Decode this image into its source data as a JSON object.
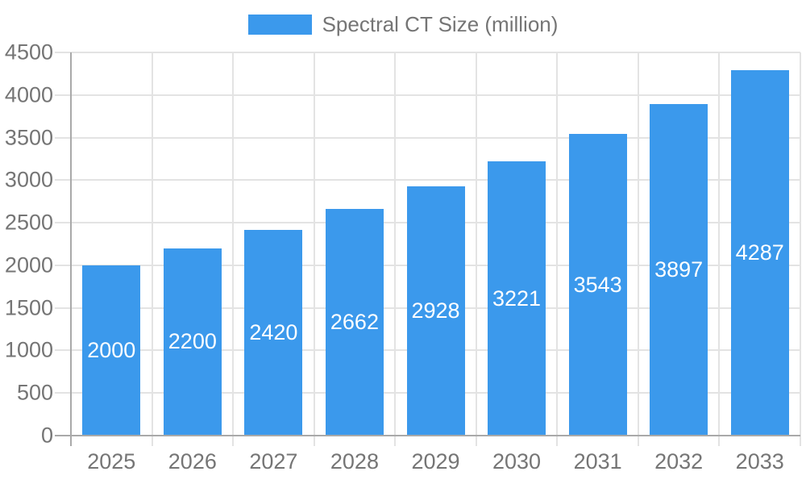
{
  "chart_data": {
    "type": "bar",
    "legend": "Spectral CT Size (million)",
    "legend_position": "top",
    "categories": [
      "2025",
      "2026",
      "2027",
      "2028",
      "2029",
      "2030",
      "2031",
      "2032",
      "2033"
    ],
    "values": [
      2000,
      2200,
      2420,
      2662,
      2928,
      3221,
      3543,
      3897,
      4287
    ],
    "ylim": [
      0,
      4500
    ],
    "ytick_step": 500,
    "yticks": [
      0,
      500,
      1000,
      1500,
      2000,
      2500,
      3000,
      3500,
      4000,
      4500
    ],
    "grid": true,
    "bar_value_labels": "inside-center",
    "colors": {
      "bar": "#3B99EC",
      "bar_label": "#FFFFFF",
      "axis_text": "#757575",
      "gridline": "#E3E3E3",
      "axis_line": "#A9A9A9"
    }
  }
}
